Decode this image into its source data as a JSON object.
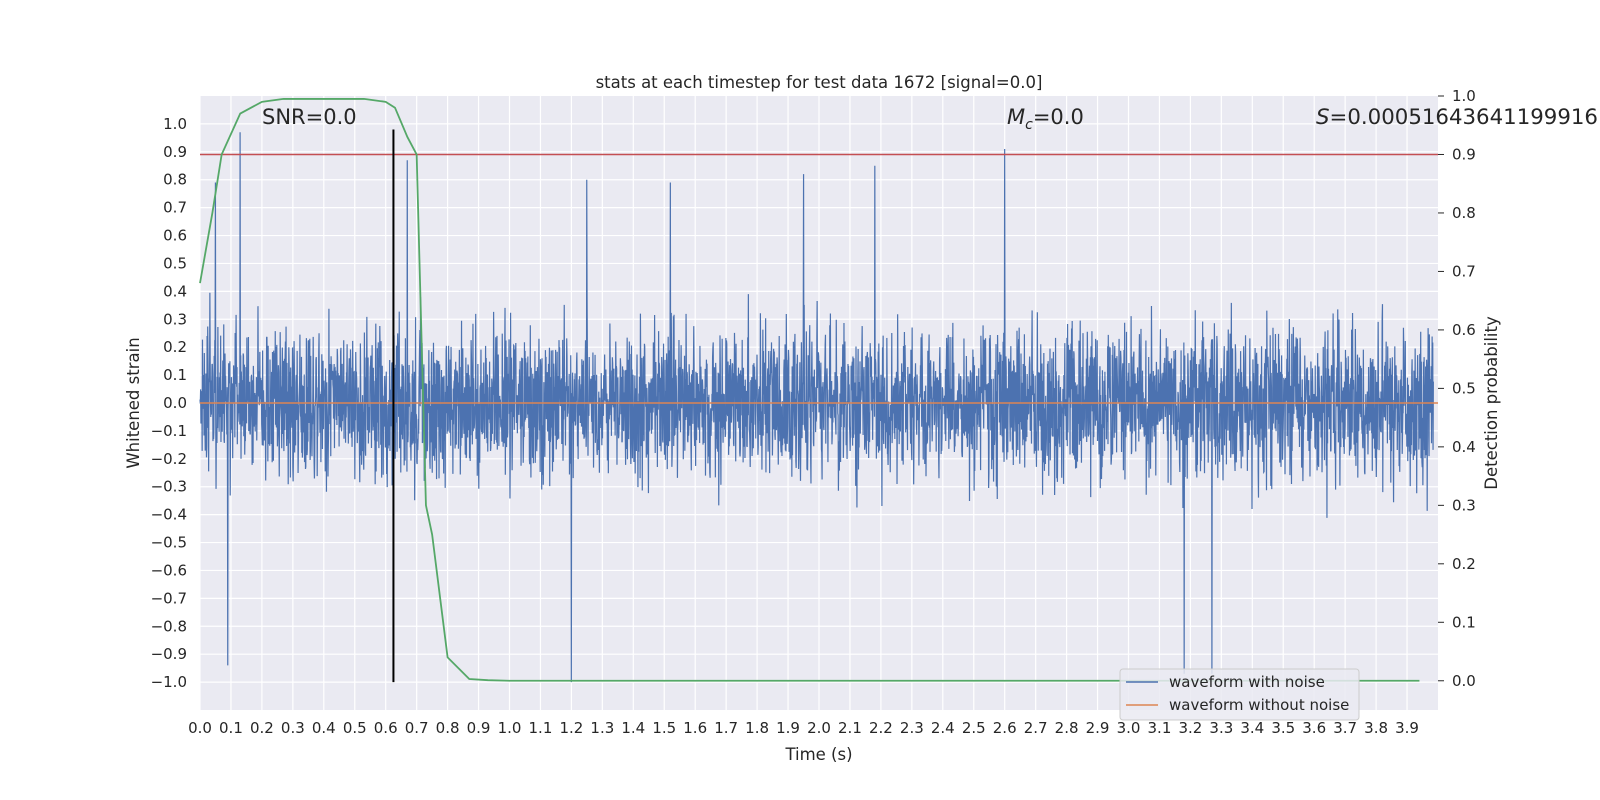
{
  "chart_data": {
    "type": "line",
    "title": "stats at each timestep for test data 1672 [signal=0.0]",
    "xlabel": "Time (s)",
    "ylabel": "Whitened strain",
    "y2label": "Detection probability",
    "xlim": [
      0.0,
      4.0
    ],
    "ylim": [
      -1.1,
      1.1
    ],
    "y2lim": [
      -0.05,
      1.0
    ],
    "xticks": [
      "0.0",
      "0.1",
      "0.2",
      "0.3",
      "0.4",
      "0.5",
      "0.6",
      "0.7",
      "0.8",
      "0.9",
      "1.0",
      "1.1",
      "1.2",
      "1.3",
      "1.4",
      "1.5",
      "1.6",
      "1.7",
      "1.8",
      "1.9",
      "2.0",
      "2.1",
      "2.2",
      "2.3",
      "2.4",
      "2.5",
      "2.6",
      "2.7",
      "2.8",
      "2.9",
      "3.0",
      "3.1",
      "3.2",
      "3.3",
      "3.4",
      "3.5",
      "3.6",
      "3.7",
      "3.8",
      "3.9"
    ],
    "yticks": [
      "1.0",
      "0.9",
      "0.8",
      "0.7",
      "0.6",
      "0.5",
      "0.4",
      "0.3",
      "0.2",
      "0.1",
      "0.0",
      "-0.1",
      "-0.2",
      "-0.3",
      "-0.4",
      "-0.5",
      "-0.6",
      "-0.7",
      "-0.8",
      "-0.9",
      "-1.0"
    ],
    "y2ticks": [
      "1.0",
      "0.9",
      "0.8",
      "0.7",
      "0.6",
      "0.5",
      "0.4",
      "0.3",
      "0.2",
      "0.1",
      "0.0"
    ],
    "grid": true,
    "legend_position": "lower-right",
    "annotations": {
      "snr": "SNR=0.0",
      "mc_symbol": "M",
      "mc_sub": "c",
      "mc_value": "=0.0",
      "s_symbol": "S",
      "s_value": "=0.00051643641199916"
    },
    "series": [
      {
        "name": "waveform with noise",
        "color": "#4c72b0",
        "axis": "left",
        "description_only": "dense noise trace",
        "peaks": [
          {
            "x": 0.05,
            "y": 0.79
          },
          {
            "x": 0.09,
            "y": -0.94
          },
          {
            "x": 0.13,
            "y": 0.97
          },
          {
            "x": 0.67,
            "y": 0.87
          },
          {
            "x": 1.2,
            "y": -1.0
          },
          {
            "x": 1.25,
            "y": 0.8
          },
          {
            "x": 1.52,
            "y": 0.79
          },
          {
            "x": 1.95,
            "y": 0.82
          },
          {
            "x": 2.18,
            "y": 0.85
          },
          {
            "x": 2.6,
            "y": 0.91
          },
          {
            "x": 3.18,
            "y": -0.97
          },
          {
            "x": 3.27,
            "y": -0.97
          }
        ],
        "typical_amplitude": 0.45
      },
      {
        "name": "waveform without noise",
        "color": "#dd8452",
        "axis": "left",
        "x": [
          0.0,
          4.0
        ],
        "y": [
          0.0,
          0.0
        ]
      },
      {
        "name": "",
        "color": "#55a868",
        "axis": "right",
        "x": [
          0.0,
          0.04,
          0.07,
          0.13,
          0.2,
          0.27,
          0.33,
          0.4,
          0.47,
          0.53,
          0.6,
          0.63,
          0.67,
          0.7,
          0.73,
          0.75,
          0.8,
          0.87,
          0.93,
          1.0,
          1.5,
          2.0,
          2.5,
          3.0,
          3.5,
          3.94
        ],
        "y": [
          0.68,
          0.8,
          0.9,
          0.97,
          0.99,
          0.995,
          0.995,
          0.995,
          0.995,
          0.995,
          0.99,
          0.98,
          0.93,
          0.9,
          0.3,
          0.25,
          0.04,
          0.003,
          0.001,
          0.0,
          0.0,
          0.0,
          0.0,
          0.0,
          0.0,
          0.0
        ]
      }
    ],
    "threshold_line": {
      "color": "#c44e52",
      "axis": "right",
      "y": 0.9
    },
    "marker_line": {
      "color": "#000000",
      "axis": "left",
      "x": 0.625,
      "y_from": -1.0,
      "y_to": 0.98
    },
    "legend": [
      "waveform with noise",
      "waveform without noise"
    ]
  }
}
